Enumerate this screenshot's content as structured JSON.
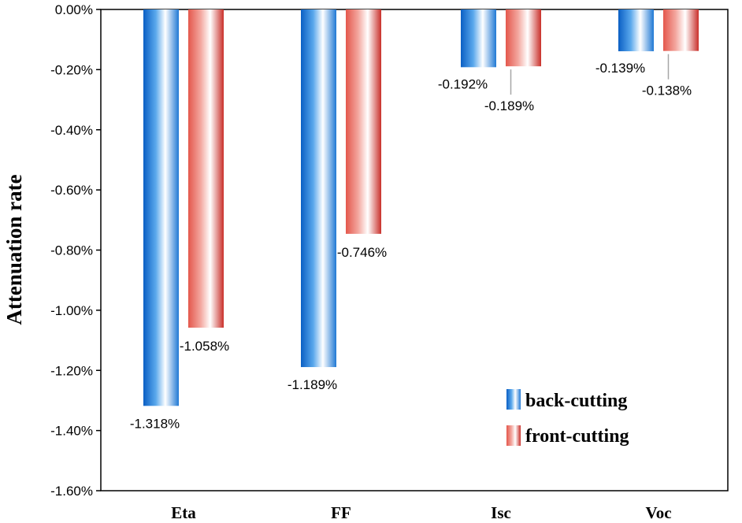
{
  "chart_data": {
    "type": "bar",
    "categories": [
      "Eta",
      "FF",
      "Isc",
      "Voc"
    ],
    "series": [
      {
        "name": "back-cutting",
        "values": [
          -1.318,
          -1.189,
          -0.192,
          -0.139
        ],
        "labels": [
          "-1.318%",
          "-1.189%",
          "-0.192%",
          "-0.139%"
        ],
        "color": "#1f78d4"
      },
      {
        "name": "front-cutting",
        "values": [
          -1.058,
          -0.746,
          -0.189,
          -0.138
        ],
        "labels": [
          "-1.058%",
          "-0.746%",
          "-0.189%",
          "-0.138%"
        ],
        "color": "#d9433a"
      }
    ],
    "ylabel": "Attenuation rate",
    "ylim": [
      -1.6,
      0.0
    ],
    "yticks": [
      "0.00%",
      "-0.20%",
      "-0.40%",
      "-0.60%",
      "-0.80%",
      "-1.00%",
      "-1.20%",
      "-1.40%",
      "-1.60%"
    ],
    "ytick_values": [
      0.0,
      -0.2,
      -0.4,
      -0.6,
      -0.8,
      -1.0,
      -1.2,
      -1.4,
      -1.6
    ],
    "grid": false,
    "legend_position": "bottom-right"
  }
}
